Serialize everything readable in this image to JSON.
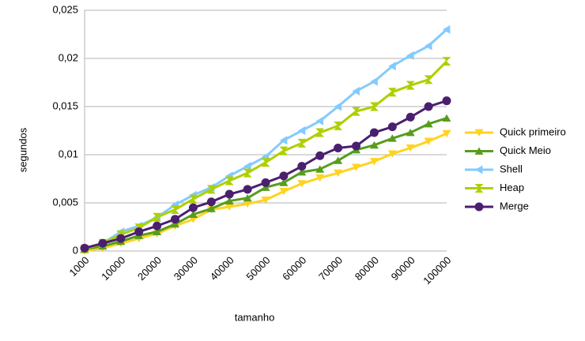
{
  "chart_data": {
    "type": "line",
    "x_label": "tamanho",
    "y_label": "segundos",
    "categories": [
      "1000",
      null,
      "10000",
      null,
      "20000",
      null,
      "30000",
      null,
      "40000",
      null,
      "50000",
      null,
      "60000",
      null,
      "70000",
      null,
      "80000",
      null,
      "90000",
      null,
      "100000"
    ],
    "series": [
      {
        "name": "Quick primeiro",
        "color": "#ffd320",
        "marker": "triangle-down",
        "values": [
          0,
          0.0003,
          0.0008,
          0.0013,
          0.0018,
          0.0026,
          0.0033,
          0.0043,
          0.0046,
          0.0049,
          0.0053,
          0.0062,
          0.007,
          0.0076,
          0.0081,
          0.0087,
          0.0093,
          0.0101,
          0.0107,
          0.0114,
          0.0122
        ]
      },
      {
        "name": "Quick Meio",
        "color": "#579d1c",
        "marker": "triangle-up",
        "values": [
          0.0002,
          0.0005,
          0.001,
          0.0016,
          0.002,
          0.0028,
          0.0038,
          0.0044,
          0.0052,
          0.0055,
          0.0066,
          0.0071,
          0.0082,
          0.0085,
          0.0094,
          0.0105,
          0.011,
          0.0117,
          0.0123,
          0.0132,
          0.0138
        ]
      },
      {
        "name": "Shell",
        "color": "#83caff",
        "marker": "triangle-left",
        "values": [
          0.0002,
          0.0008,
          0.002,
          0.0026,
          0.0035,
          0.0048,
          0.0058,
          0.0066,
          0.0078,
          0.0088,
          0.0098,
          0.0115,
          0.0125,
          0.0135,
          0.015,
          0.0166,
          0.0176,
          0.0192,
          0.0203,
          0.0213,
          0.023
        ]
      },
      {
        "name": "Heap",
        "color": "#aecf00",
        "marker": "hourglass",
        "values": [
          0.0002,
          0.0008,
          0.0017,
          0.0024,
          0.0035,
          0.0043,
          0.0054,
          0.0064,
          0.0073,
          0.0081,
          0.0092,
          0.0104,
          0.0112,
          0.0123,
          0.013,
          0.0145,
          0.015,
          0.0165,
          0.0172,
          0.0178,
          0.0197
        ]
      },
      {
        "name": "Merge",
        "color": "#4b1f6f",
        "marker": "circle",
        "values": [
          0.0003,
          0.0008,
          0.0013,
          0.002,
          0.0026,
          0.0033,
          0.0045,
          0.0051,
          0.0059,
          0.0064,
          0.0071,
          0.0078,
          0.0088,
          0.0099,
          0.0107,
          0.0109,
          0.0123,
          0.0129,
          0.0139,
          0.015,
          0.0156
        ]
      }
    ],
    "ylim": [
      0,
      0.025
    ],
    "yticks": [
      0,
      {
        "value": 0.005,
        "label": "0,005"
      },
      {
        "value": 0.01,
        "label": "0,01"
      },
      {
        "value": 0.015,
        "label": "0,015"
      },
      {
        "value": 0.02,
        "label": "0,02"
      },
      {
        "value": 0.025,
        "label": "0,025"
      }
    ],
    "grid": true,
    "legend": "right"
  }
}
